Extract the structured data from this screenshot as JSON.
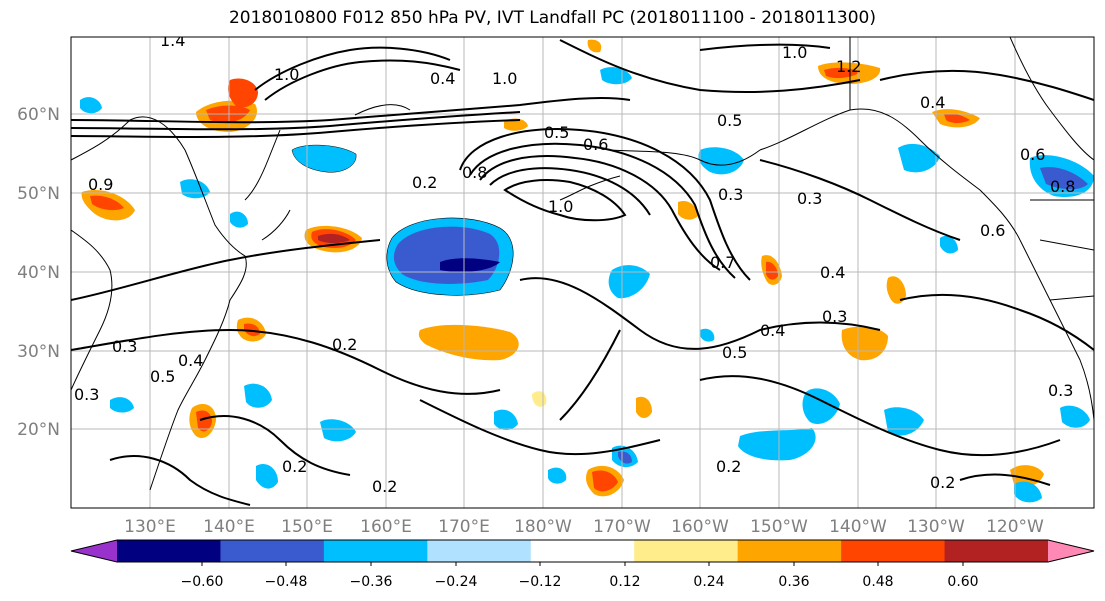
{
  "title": "2018010800 F012 850 hPa PV, IVT Landfall PC (2018011100 - 2018011300)",
  "lat_labels": [
    "60°N",
    "50°N",
    "40°N",
    "30°N",
    "20°N"
  ],
  "lon_labels": [
    "130°E",
    "140°E",
    "150°E",
    "160°E",
    "170°E",
    "180°W",
    "170°W",
    "160°W",
    "150°W",
    "140°W",
    "130°W",
    "120°W"
  ],
  "colorbar": {
    "colors": [
      "#9932cc",
      "#000080",
      "#3a5bd0",
      "#00bfff",
      "#b0e2ff",
      "#ffffff",
      "#ffec8b",
      "#ffa500",
      "#ff4500",
      "#b22222",
      "#ff88b4"
    ],
    "tick_labels": [
      "−0.60",
      "−0.48",
      "−0.36",
      "−0.24",
      "−0.12",
      "0.12",
      "0.24",
      "0.36",
      "0.48",
      "0.60"
    ]
  },
  "contour_labels": [
    "1.4",
    "1.0",
    "1.0",
    "1.2",
    "0.4",
    "0.5",
    "0.6",
    "0.5",
    "0.2",
    "0.8",
    "1.0",
    "0.3",
    "0.3",
    "0.7",
    "0.4",
    "0.4",
    "0.3",
    "0.2",
    "0.3",
    "0.5",
    "0.4",
    "0.3",
    "0.2",
    "0.2",
    "0.2",
    "0.2",
    "0.5",
    "0.3",
    "0.6",
    "0.8",
    "0.4",
    "0.6",
    "1.0",
    "0.9"
  ]
}
